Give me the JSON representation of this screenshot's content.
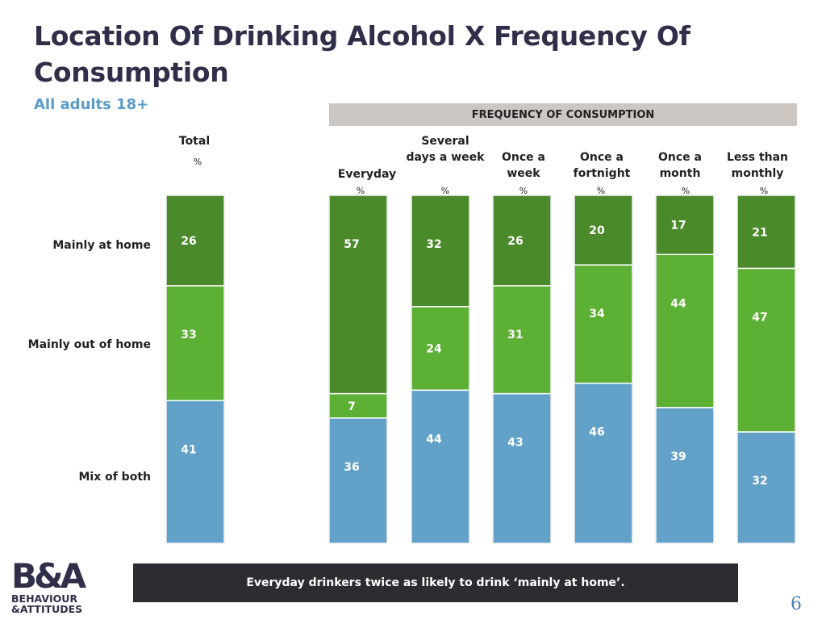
{
  "slide": {
    "title": "Location Of Drinking Alcohol X Frequency Of Consumption",
    "subtitle": "All adults 18+",
    "frequency_header": "FREQUENCY OF CONSUMPTION",
    "callout": "Everyday drinkers twice as likely to drink ‘mainly at home’.",
    "page_number": "6"
  },
  "logo": {
    "line1": "B&A",
    "line2": "BEHAVIOUR",
    "line3": "&ATTITUDES"
  },
  "colors": {
    "mainly_at_home": "#4a8a2a",
    "mainly_out_of_home": "#5cb034",
    "mix_of_both": "#62a1c8",
    "title": "#2f2f4a",
    "subtitle": "#5b9bc8",
    "callout_bg": "#2c2d33"
  },
  "chart_data": {
    "type": "bar",
    "stacked": true,
    "percent_scale": true,
    "categories": [
      "Total",
      "Everyday",
      "Several days a week",
      "Once a week",
      "Once a fortnight",
      "Once a month",
      "Less than monthly"
    ],
    "category_unit": "%",
    "series": [
      {
        "name": "Mainly at home",
        "values": [
          26,
          57,
          32,
          26,
          20,
          17,
          21
        ]
      },
      {
        "name": "Mainly out of home",
        "values": [
          33,
          7,
          24,
          31,
          34,
          44,
          47
        ]
      },
      {
        "name": "Mix of both",
        "values": [
          41,
          36,
          44,
          43,
          46,
          39,
          32
        ]
      }
    ],
    "ylim": [
      0,
      100
    ]
  }
}
